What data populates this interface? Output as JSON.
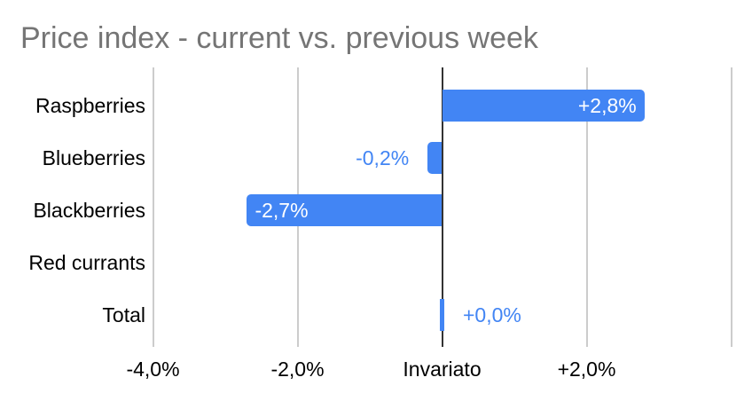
{
  "title": "Price index - current vs. previous week",
  "colors": {
    "background": "#ffffff",
    "bar": "#4285f4",
    "bar_label_inside": "#ffffff",
    "bar_label_outside": "#4285f4",
    "gridline": "#cccccc",
    "zero_line": "#333333",
    "title_text": "#757575",
    "axis_text": "#000000"
  },
  "chart_data": {
    "type": "bar",
    "orientation": "horizontal",
    "title": "Price index - current vs. previous week",
    "categories": [
      "Raspberries",
      "Blueberries",
      "Blackberries",
      "Red currants",
      "Total"
    ],
    "values": [
      2.8,
      -0.2,
      -2.7,
      null,
      0
    ],
    "value_labels": [
      "+2,8%",
      "-0,2%",
      "-2,7%",
      null,
      "+0,0%"
    ],
    "label_placement": [
      "inside-end",
      "outside-start",
      "inside-start",
      null,
      "outside-end"
    ],
    "x_axis": {
      "min": -4,
      "max": 4,
      "ticks": [
        {
          "value": -4,
          "label": "-4,0%"
        },
        {
          "value": -2,
          "label": "-2,0%"
        },
        {
          "value": 0,
          "label": "Invariato"
        },
        {
          "value": 2,
          "label": "+2,0%"
        },
        {
          "value": 4,
          "label": ""
        }
      ]
    },
    "grid": true,
    "legend": "none",
    "bar_color": "#4285f4"
  }
}
